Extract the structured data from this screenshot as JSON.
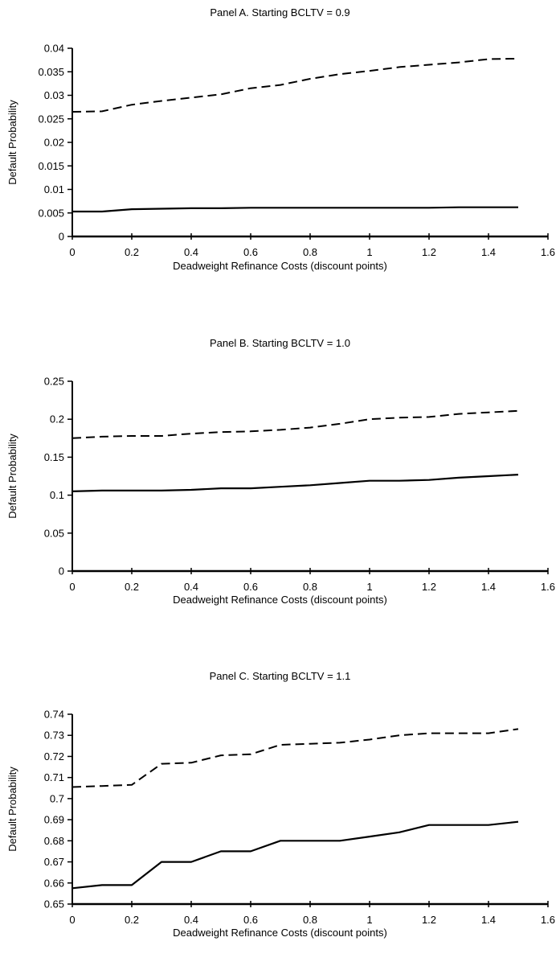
{
  "chart_data": [
    {
      "type": "line",
      "title": "Panel A.  Starting BCLTV = 0.9",
      "xlabel": "Deadweight Refinance Costs (discount points)",
      "ylabel": "Default Probability",
      "xlim": [
        0,
        1.6
      ],
      "ylim": [
        0,
        0.04
      ],
      "x_ticks": [
        "0",
        "0.2",
        "0.4",
        "0.6",
        "0.8",
        "1",
        "1.2",
        "1.4",
        "1.6"
      ],
      "y_ticks": [
        "0",
        "0.005",
        "0.01",
        "0.015",
        "0.02",
        "0.025",
        "0.03",
        "0.035",
        "0.04"
      ],
      "x": [
        0,
        0.1,
        0.2,
        0.3,
        0.4,
        0.5,
        0.6,
        0.7,
        0.8,
        0.9,
        1.0,
        1.1,
        1.2,
        1.3,
        1.4,
        1.5
      ],
      "series": [
        {
          "style": "dashed",
          "values": [
            0.0265,
            0.0266,
            0.028,
            0.0288,
            0.0295,
            0.0302,
            0.0315,
            0.0322,
            0.0335,
            0.0345,
            0.0352,
            0.036,
            0.0365,
            0.037,
            0.0377,
            0.0378
          ]
        },
        {
          "style": "solid",
          "values": [
            0.0053,
            0.0053,
            0.0058,
            0.0059,
            0.006,
            0.006,
            0.0061,
            0.0061,
            0.0061,
            0.0061,
            0.0061,
            0.0061,
            0.0061,
            0.0062,
            0.0062,
            0.0062
          ]
        }
      ],
      "grid": false
    },
    {
      "type": "line",
      "title": "Panel B.  Starting BCLTV = 1.0",
      "xlabel": "Deadweight Refinance Costs (discount points)",
      "ylabel": "Default Probability",
      "xlim": [
        0,
        1.6
      ],
      "ylim": [
        0,
        0.25
      ],
      "x_ticks": [
        "0",
        "0.2",
        "0.4",
        "0.6",
        "0.8",
        "1",
        "1.2",
        "1.4",
        "1.6"
      ],
      "y_ticks": [
        "0",
        "0.05",
        "0.1",
        "0.15",
        "0.2",
        "0.25"
      ],
      "x": [
        0,
        0.1,
        0.2,
        0.3,
        0.4,
        0.5,
        0.6,
        0.7,
        0.8,
        0.9,
        1.0,
        1.1,
        1.2,
        1.3,
        1.4,
        1.5
      ],
      "series": [
        {
          "style": "dashed",
          "values": [
            0.175,
            0.177,
            0.178,
            0.178,
            0.181,
            0.183,
            0.184,
            0.186,
            0.189,
            0.194,
            0.2,
            0.202,
            0.203,
            0.207,
            0.209,
            0.211
          ]
        },
        {
          "style": "solid",
          "values": [
            0.105,
            0.106,
            0.106,
            0.106,
            0.107,
            0.109,
            0.109,
            0.111,
            0.113,
            0.116,
            0.119,
            0.119,
            0.12,
            0.123,
            0.125,
            0.127
          ]
        }
      ],
      "grid": false
    },
    {
      "type": "line",
      "title": "Panel C.  Starting BCLTV = 1.1",
      "xlabel": "Deadweight Refinance Costs (discount points)",
      "ylabel": "Default Probability",
      "xlim": [
        0,
        1.6
      ],
      "ylim": [
        0.65,
        0.74
      ],
      "x_ticks": [
        "0",
        "0.2",
        "0.4",
        "0.6",
        "0.8",
        "1",
        "1.2",
        "1.4",
        "1.6"
      ],
      "y_ticks": [
        "0.65",
        "0.66",
        "0.67",
        "0.68",
        "0.69",
        "0.7",
        "0.71",
        "0.72",
        "0.73",
        "0.74"
      ],
      "x": [
        0,
        0.1,
        0.2,
        0.3,
        0.4,
        0.5,
        0.6,
        0.7,
        0.8,
        0.9,
        1.0,
        1.1,
        1.2,
        1.3,
        1.4,
        1.5
      ],
      "series": [
        {
          "style": "dashed",
          "values": [
            0.7055,
            0.706,
            0.7065,
            0.7165,
            0.717,
            0.7205,
            0.721,
            0.7255,
            0.726,
            0.7265,
            0.728,
            0.73,
            0.731,
            0.731,
            0.731,
            0.733
          ]
        },
        {
          "style": "solid",
          "values": [
            0.6575,
            0.659,
            0.659,
            0.67,
            0.67,
            0.675,
            0.675,
            0.68,
            0.68,
            0.68,
            0.682,
            0.684,
            0.6875,
            0.6875,
            0.6875,
            0.689
          ]
        }
      ],
      "grid": false
    }
  ]
}
